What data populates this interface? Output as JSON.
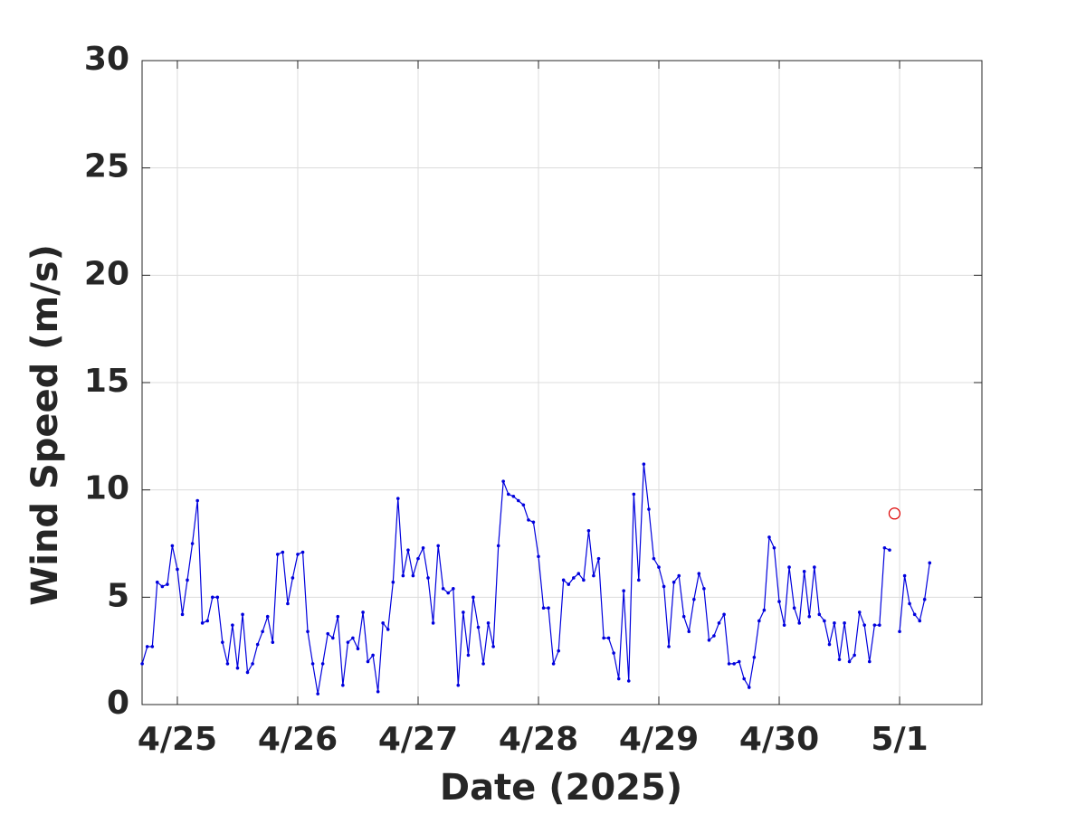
{
  "chart_data": {
    "type": "line",
    "xlabel": "Date (2025)",
    "ylabel": "Wind Speed (m/s)",
    "xlim": [
      24.707,
      31.684
    ],
    "ylim": [
      0,
      30
    ],
    "xticks": [
      {
        "value": 25,
        "label": "4/25"
      },
      {
        "value": 26,
        "label": "4/26"
      },
      {
        "value": 27,
        "label": "4/27"
      },
      {
        "value": 28,
        "label": "4/28"
      },
      {
        "value": 29,
        "label": "4/29"
      },
      {
        "value": 30,
        "label": "4/30"
      },
      {
        "value": 31,
        "label": "5/1"
      }
    ],
    "yticks": [
      0,
      5,
      10,
      15,
      20,
      25,
      30
    ],
    "grid": true,
    "series": [
      {
        "color": "#0000dd",
        "marker": "dot",
        "x": [
          24.708,
          24.75,
          24.792,
          24.833,
          24.875,
          24.917,
          24.958,
          25,
          25.042,
          25.083,
          25.125,
          25.167,
          25.208,
          25.25,
          25.292,
          25.333,
          25.375,
          25.417,
          25.458,
          25.5,
          25.542,
          25.583,
          25.625,
          25.667,
          25.708,
          25.75,
          25.792,
          25.833,
          25.875,
          25.917,
          25.958,
          26,
          26.042,
          26.083,
          26.125,
          26.167,
          26.208,
          26.25,
          26.292,
          26.333,
          26.375,
          26.417,
          26.458,
          26.5,
          26.542,
          26.583,
          26.625,
          26.667,
          26.708,
          26.75,
          26.792,
          26.833,
          26.875,
          26.917,
          26.958,
          27,
          27.042,
          27.083,
          27.125,
          27.167,
          27.208,
          27.25,
          27.292,
          27.333,
          27.375,
          27.417,
          27.458,
          27.5,
          27.542,
          27.583,
          27.625,
          27.667,
          27.708,
          27.75,
          27.792,
          27.833,
          27.875,
          27.917,
          27.958,
          28,
          28.042,
          28.083,
          28.125,
          28.167,
          28.208,
          28.25,
          28.292,
          28.333,
          28.375,
          28.417,
          28.458,
          28.5,
          28.542,
          28.583,
          28.625,
          28.667,
          28.708,
          28.75,
          28.792,
          28.833,
          28.875,
          28.917,
          28.958,
          29,
          29.042,
          29.083,
          29.125,
          29.167,
          29.208,
          29.25,
          29.292,
          29.333,
          29.375,
          29.417,
          29.458,
          29.5,
          29.542,
          29.583,
          29.625,
          29.667,
          29.708,
          29.75,
          29.792,
          29.833,
          29.875,
          29.917,
          29.958,
          30,
          30.042,
          30.083,
          30.125,
          30.167,
          30.208,
          30.25,
          30.292,
          30.333,
          30.375,
          30.417,
          30.458,
          30.5,
          30.542,
          30.583,
          30.625,
          30.667,
          30.708,
          30.75,
          30.792,
          30.833,
          30.875,
          30.917,
          30.958,
          31,
          31.042,
          31.083,
          31.125,
          31.167,
          31.208,
          31.25
        ],
        "values": [
          1.9,
          2.7,
          2.7,
          5.7,
          5.5,
          5.6,
          7.4,
          6.3,
          4.2,
          5.8,
          7.5,
          9.5,
          3.8,
          3.9,
          5.0,
          5.0,
          2.9,
          1.9,
          3.7,
          1.7,
          4.2,
          1.5,
          1.9,
          2.8,
          3.4,
          4.1,
          2.9,
          7.0,
          7.1,
          4.7,
          5.9,
          7.0,
          7.1,
          3.4,
          1.9,
          0.5,
          1.9,
          3.3,
          3.1,
          4.1,
          0.9,
          2.9,
          3.1,
          2.6,
          4.3,
          2.0,
          2.3,
          0.6,
          3.8,
          3.5,
          5.7,
          9.6,
          6.0,
          7.2,
          6.0,
          6.8,
          7.3,
          5.9,
          3.8,
          7.4,
          5.4,
          5.2,
          5.4,
          0.9,
          4.3,
          2.3,
          5.0,
          3.6,
          1.9,
          3.8,
          2.7,
          7.4,
          10.4,
          9.8,
          9.7,
          9.5,
          9.3,
          8.6,
          8.5,
          6.9,
          4.5,
          4.5,
          1.9,
          2.5,
          5.8,
          5.6,
          5.9,
          6.1,
          5.8,
          8.1,
          6.0,
          6.8,
          3.1,
          3.1,
          2.4,
          1.2,
          5.3,
          1.1,
          9.8,
          5.8,
          11.2,
          9.1,
          6.8,
          6.4,
          5.5,
          2.7,
          5.7,
          6.0,
          4.1,
          3.4,
          4.9,
          6.1,
          5.4,
          3.0,
          3.2,
          3.8,
          4.2,
          1.9,
          1.9,
          2.0,
          1.2,
          0.8,
          2.2,
          3.9,
          4.4,
          7.8,
          7.3,
          4.8,
          3.7,
          6.4,
          4.5,
          3.8,
          6.2,
          4.1,
          6.4,
          4.2,
          3.9,
          2.8,
          3.8,
          2.1,
          3.8,
          2.0,
          2.3,
          4.3,
          3.7,
          2.0,
          3.7,
          3.7,
          7.3,
          7.2,
          null,
          3.4,
          6.0,
          4.7,
          4.2,
          3.9,
          4.9,
          6.6
        ]
      },
      {
        "color": "#dd0000",
        "marker": "circle",
        "x": [
          30.958
        ],
        "values": [
          8.9
        ]
      }
    ]
  }
}
